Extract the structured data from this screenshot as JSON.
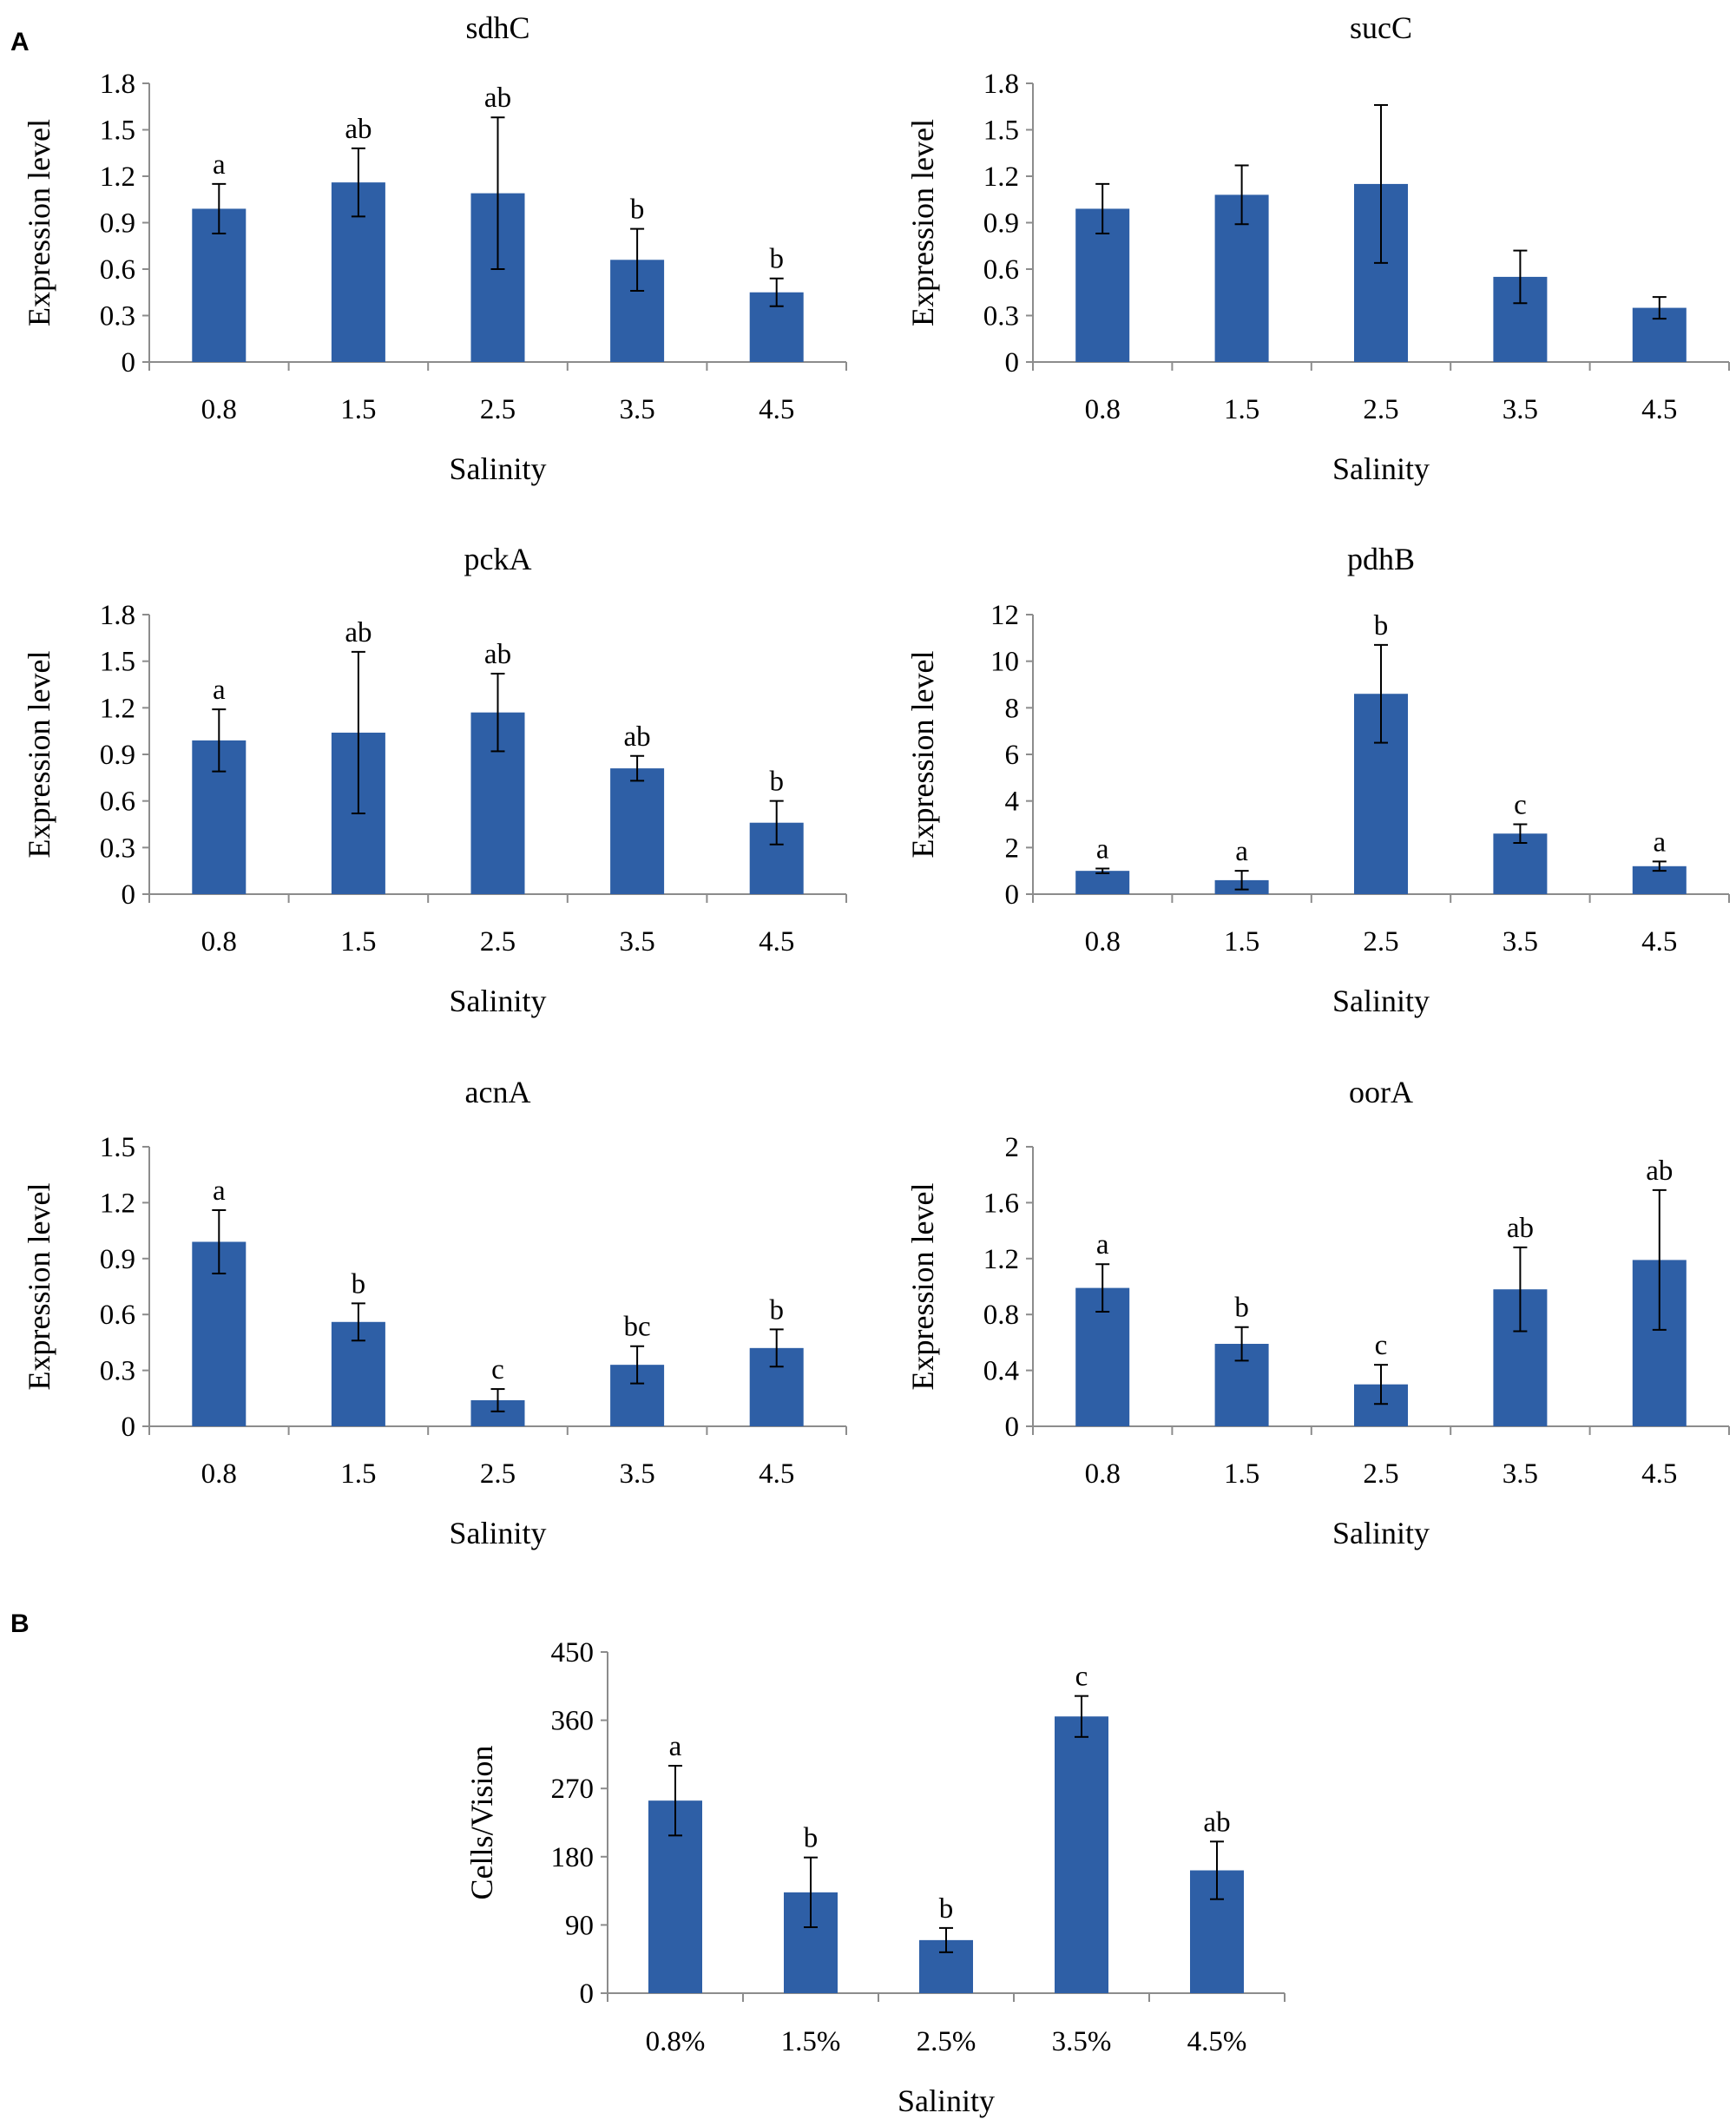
{
  "panel_labels": [
    "A",
    "B"
  ],
  "chart_data": [
    {
      "type": "bar",
      "title": "sdhC",
      "xlabel": "Salinity",
      "ylabel": "Expression level",
      "categories": [
        "0.8",
        "1.5",
        "2.5",
        "3.5",
        "4.5"
      ],
      "values": [
        0.99,
        1.16,
        1.09,
        0.66,
        0.45
      ],
      "errors": [
        0.16,
        0.22,
        0.49,
        0.2,
        0.09
      ],
      "significance": [
        "a",
        "ab",
        "ab",
        "b",
        "b"
      ],
      "ylim": [
        0,
        1.8
      ],
      "yticks": [
        "0",
        "0.3",
        "0.6",
        "0.9",
        "1.2",
        "1.5",
        "1.8"
      ],
      "bar_color": "#2e5fa6"
    },
    {
      "type": "bar",
      "title": "sucC",
      "xlabel": "Salinity",
      "ylabel": "Expression level",
      "categories": [
        "0.8",
        "1.5",
        "2.5",
        "3.5",
        "4.5"
      ],
      "values": [
        0.99,
        1.08,
        1.15,
        0.55,
        0.35
      ],
      "errors": [
        0.16,
        0.19,
        0.51,
        0.17,
        0.07
      ],
      "significance": [
        "",
        "",
        "",
        "",
        ""
      ],
      "ylim": [
        0,
        1.8
      ],
      "yticks": [
        "0",
        "0.3",
        "0.6",
        "0.9",
        "1.2",
        "1.5",
        "1.8"
      ],
      "bar_color": "#2e5fa6"
    },
    {
      "type": "bar",
      "title": "pckA",
      "xlabel": "Salinity",
      "ylabel": "Expression level",
      "categories": [
        "0.8",
        "1.5",
        "2.5",
        "3.5",
        "4.5"
      ],
      "values": [
        0.99,
        1.04,
        1.17,
        0.81,
        0.46
      ],
      "errors": [
        0.2,
        0.52,
        0.25,
        0.08,
        0.14
      ],
      "significance": [
        "a",
        "ab",
        "ab",
        "ab",
        "b"
      ],
      "ylim": [
        0,
        1.8
      ],
      "yticks": [
        "0",
        "0.3",
        "0.6",
        "0.9",
        "1.2",
        "1.5",
        "1.8"
      ],
      "bar_color": "#2e5fa6"
    },
    {
      "type": "bar",
      "title": "pdhB",
      "xlabel": "Salinity",
      "ylabel": "Expression level",
      "categories": [
        "0.8",
        "1.5",
        "2.5",
        "3.5",
        "4.5"
      ],
      "values": [
        1.0,
        0.6,
        8.6,
        2.6,
        1.2
      ],
      "errors": [
        0.1,
        0.4,
        2.1,
        0.4,
        0.2
      ],
      "significance": [
        "a",
        "a",
        "b",
        "c",
        "a"
      ],
      "ylim": [
        0,
        12
      ],
      "yticks": [
        "0",
        "2",
        "4",
        "6",
        "8",
        "10",
        "12"
      ],
      "bar_color": "#2e5fa6"
    },
    {
      "type": "bar",
      "title": "acnA",
      "xlabel": "Salinity",
      "ylabel": "Expression level",
      "categories": [
        "0.8",
        "1.5",
        "2.5",
        "3.5",
        "4.5"
      ],
      "values": [
        0.99,
        0.56,
        0.14,
        0.33,
        0.42
      ],
      "errors": [
        0.17,
        0.1,
        0.06,
        0.1,
        0.1
      ],
      "significance": [
        "a",
        "b",
        "c",
        "bc",
        "b"
      ],
      "ylim": [
        0,
        1.5
      ],
      "yticks": [
        "0",
        "0.3",
        "0.6",
        "0.9",
        "1.2",
        "1.5"
      ],
      "bar_color": "#2e5fa6"
    },
    {
      "type": "bar",
      "title": "oorA",
      "xlabel": "Salinity",
      "ylabel": "Expression level",
      "categories": [
        "0.8",
        "1.5",
        "2.5",
        "3.5",
        "4.5"
      ],
      "values": [
        0.99,
        0.59,
        0.3,
        0.98,
        1.19
      ],
      "errors": [
        0.17,
        0.12,
        0.14,
        0.3,
        0.5
      ],
      "significance": [
        "a",
        "b",
        "c",
        "ab",
        "ab"
      ],
      "ylim": [
        0,
        2
      ],
      "yticks": [
        "0",
        "0.4",
        "0.8",
        "1.2",
        "1.6",
        "2"
      ],
      "bar_color": "#2e5fa6"
    },
    {
      "type": "bar",
      "title": "",
      "xlabel": "Salinity",
      "ylabel": "Cells/Vision",
      "categories": [
        "0.8%",
        "1.5%",
        "2.5%",
        "3.5%",
        "4.5%"
      ],
      "values": [
        254,
        133,
        70,
        365,
        162
      ],
      "errors": [
        46,
        46,
        16,
        27,
        38
      ],
      "significance": [
        "a",
        "b",
        "b",
        "c",
        "ab"
      ],
      "ylim": [
        0,
        450
      ],
      "yticks": [
        "0",
        "90",
        "180",
        "270",
        "360",
        "450"
      ],
      "bar_color": "#2e5fa6"
    }
  ]
}
